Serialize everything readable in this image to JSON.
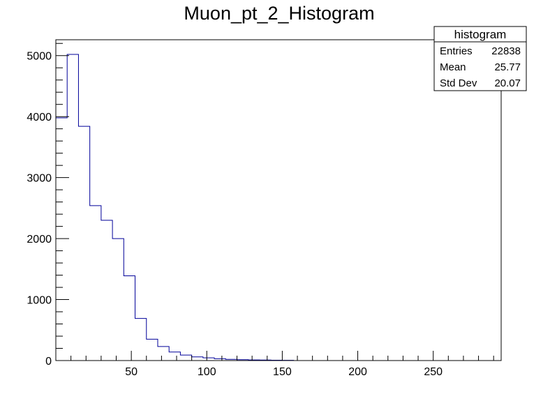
{
  "chart_data": {
    "type": "bar",
    "title": "Muon_pt_2_Histogram",
    "xlabel": "",
    "ylabel": "",
    "xlim": [
      0,
      295
    ],
    "ylim": [
      0,
      5260
    ],
    "grid": false,
    "bin_edges": [
      0,
      7.5,
      15,
      22.5,
      30,
      37.5,
      45,
      52.5,
      60,
      67.5,
      75,
      82.5,
      90,
      97.5,
      105,
      112.5,
      120,
      127.5,
      135,
      142.5,
      150,
      157.5,
      165,
      172.5,
      180,
      187.5,
      195,
      202.5,
      210,
      217.5,
      225,
      232.5,
      240,
      247.5,
      255,
      262.5,
      270,
      277.5,
      285,
      292.5
    ],
    "values": [
      3980,
      5020,
      3840,
      2540,
      2300,
      2000,
      1390,
      690,
      350,
      230,
      140,
      90,
      60,
      45,
      30,
      20,
      15,
      10,
      8,
      6,
      5,
      0,
      0,
      0,
      0,
      0,
      0,
      0,
      0,
      0,
      0,
      0,
      0,
      0,
      0,
      0,
      0,
      0,
      0
    ],
    "x_ticks": [
      50,
      100,
      150,
      200,
      250
    ],
    "y_ticks": [
      0,
      1000,
      2000,
      3000,
      4000,
      5000
    ],
    "x_tick_labels": [
      "50",
      "100",
      "150",
      "200",
      "250"
    ],
    "y_tick_labels": [
      "0",
      "1000",
      "2000",
      "3000",
      "4000",
      "5000"
    ],
    "colors": {
      "line": "#000099",
      "frame": "#000000"
    },
    "stats_box": {
      "placement": "top-right",
      "title": "histogram",
      "rows": [
        {
          "label": "Entries",
          "value": "22838"
        },
        {
          "label": "Mean",
          "value": "25.77"
        },
        {
          "label": "Std Dev",
          "value": "20.07"
        }
      ]
    }
  }
}
